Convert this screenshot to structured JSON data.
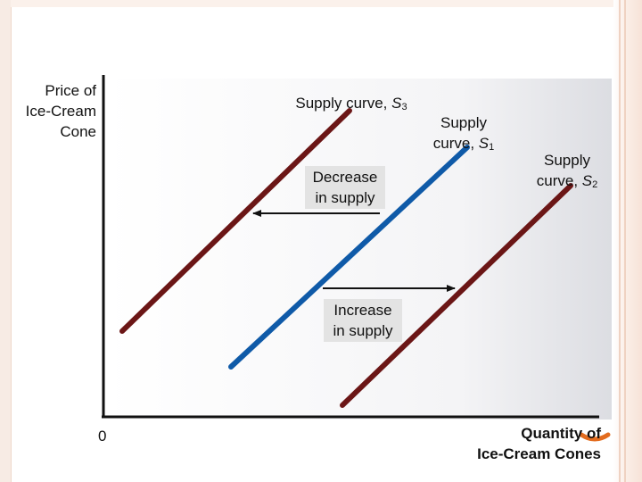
{
  "axes": {
    "y_label_line1": "Price of",
    "y_label_line2": "Ice-Cream",
    "y_label_line3": "Cone",
    "x_label_line1": "Quantity of",
    "x_label_line2": "Ice-Cream Cones",
    "origin": "0"
  },
  "curves": {
    "s3": {
      "text": "Supply curve, ",
      "symbol": "S",
      "sub": "3",
      "color": "#6b1616"
    },
    "s1": {
      "text_line1": "Supply",
      "text_line2": "curve, ",
      "symbol": "S",
      "sub": "1",
      "color": "#0f5aa8"
    },
    "s2": {
      "text_line1": "Supply",
      "text_line2": "curve, ",
      "symbol": "S",
      "sub": "2",
      "color": "#6b1616"
    }
  },
  "annotations": {
    "decrease_line1": "Decrease",
    "decrease_line2": "in supply",
    "increase_line1": "Increase",
    "increase_line2": "in supply"
  },
  "colors": {
    "axis": "#111111",
    "arrow": "#111111",
    "label_box": "#e3e3e3",
    "accent_orange": "#e36c1e"
  }
}
